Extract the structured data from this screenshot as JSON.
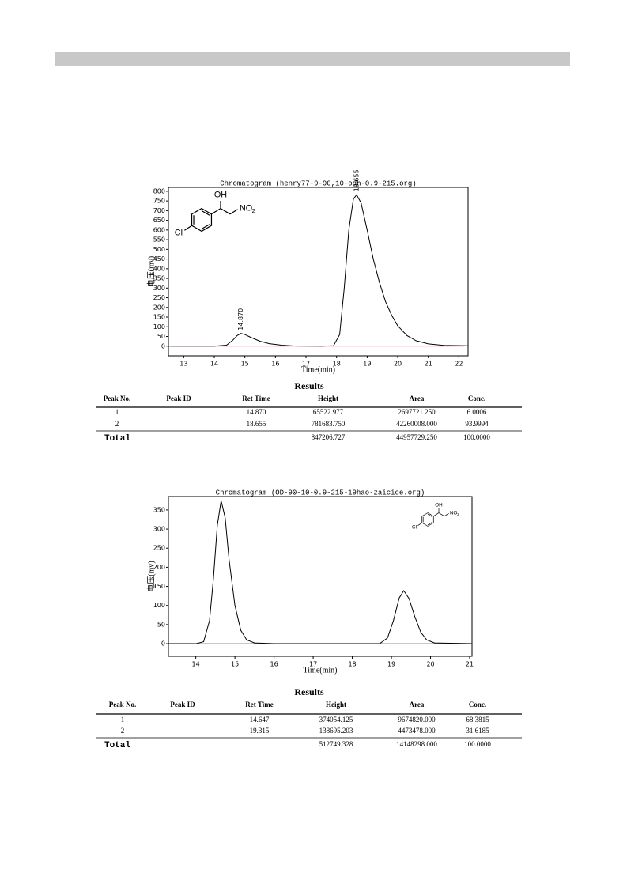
{
  "chart_data": [
    {
      "type": "line",
      "title": "Chromatogram (henry77-9-90,10-odh-0.9-215.org)",
      "y_label": "电压(mv)",
      "x_label": "Time(min)",
      "xlim": [
        12.5,
        22.3
      ],
      "ylim": [
        -50,
        820
      ],
      "xticks": [
        13,
        14,
        15,
        16,
        17,
        18,
        19,
        20,
        21,
        22
      ],
      "yticks": [
        0,
        50,
        100,
        150,
        200,
        250,
        300,
        350,
        400,
        450,
        500,
        550,
        600,
        650,
        700,
        750,
        800
      ],
      "x": [
        12.5,
        14.0,
        14.4,
        14.6,
        14.75,
        14.87,
        15.0,
        15.2,
        15.5,
        15.8,
        16.2,
        16.6,
        17.5,
        17.9,
        18.1,
        18.25,
        18.4,
        18.55,
        18.655,
        18.8,
        19.0,
        19.2,
        19.4,
        19.6,
        19.8,
        20.0,
        20.3,
        20.6,
        21.0,
        21.5,
        22.3
      ],
      "series": [
        {
          "color": "#000000",
          "values": [
            0,
            0,
            5,
            30,
            55,
            65.5,
            60,
            45,
            25,
            13,
            5,
            1,
            0,
            2,
            60,
            300,
            600,
            760,
            782,
            740,
            600,
            450,
            330,
            230,
            160,
            105,
            55,
            28,
            12,
            4,
            2
          ]
        }
      ],
      "annotations": [
        {
          "x": 14.87,
          "label": "14.870"
        },
        {
          "x": 18.655,
          "label": "18.655"
        }
      ],
      "structure": {
        "oh": "OH",
        "no": "NO",
        "sub": "2",
        "cl": "Cl"
      }
    },
    {
      "type": "line",
      "title": "Chromatogram (OD-90-10-0.9-215-19hao-zaicice.org)",
      "y_label": "电压(mv)",
      "x_label": "Time(min)",
      "xlim": [
        13.3,
        21.06
      ],
      "ylim": [
        -33,
        385
      ],
      "xticks": [
        14,
        15,
        16,
        17,
        18,
        19,
        20,
        21
      ],
      "yticks": [
        0,
        50,
        100,
        150,
        200,
        250,
        300,
        350
      ],
      "x": [
        13.3,
        14.0,
        14.2,
        14.35,
        14.45,
        14.55,
        14.647,
        14.75,
        14.85,
        15.0,
        15.15,
        15.3,
        15.5,
        16.0,
        18.7,
        18.9,
        19.05,
        19.2,
        19.315,
        19.45,
        19.6,
        19.75,
        19.9,
        20.1,
        21.06
      ],
      "series": [
        {
          "color": "#000000",
          "values": [
            0,
            0,
            5,
            60,
            170,
            310,
            374,
            330,
            220,
            100,
            35,
            10,
            2,
            0,
            0,
            15,
            60,
            120,
            138.7,
            118,
            70,
            30,
            10,
            2,
            0
          ]
        }
      ],
      "structure": {
        "oh": "OH",
        "no": "NO",
        "sub": "2",
        "cl": "Cl"
      }
    }
  ],
  "tables": [
    {
      "heading": "Results",
      "columns": [
        "Peak No.",
        "Peak ID",
        "Ret Time",
        "Height",
        "Area",
        "Conc."
      ],
      "rows": [
        [
          "1",
          "14.870",
          "65522.977",
          "2697721.250",
          "6.0006"
        ],
        [
          "2",
          "18.655",
          "781683.750",
          "42260008.000",
          "93.9994"
        ]
      ],
      "total": {
        "label": "Total",
        "height": "847206.727",
        "area": "44957729.250",
        "conc": "100.0000"
      }
    },
    {
      "heading": "Results",
      "columns": [
        "Peak No.",
        "Peak ID",
        "Ret Time",
        "Height",
        "Area",
        "Conc."
      ],
      "rows": [
        [
          "1",
          "14.647",
          "374054.125",
          "9674820.000",
          "68.3815"
        ],
        [
          "2",
          "19.315",
          "138695.203",
          "4473478.000",
          "31.6185"
        ]
      ],
      "total": {
        "label": "Total",
        "height": "512749.328",
        "area": "14148298.000",
        "conc": "100.0000"
      }
    }
  ]
}
